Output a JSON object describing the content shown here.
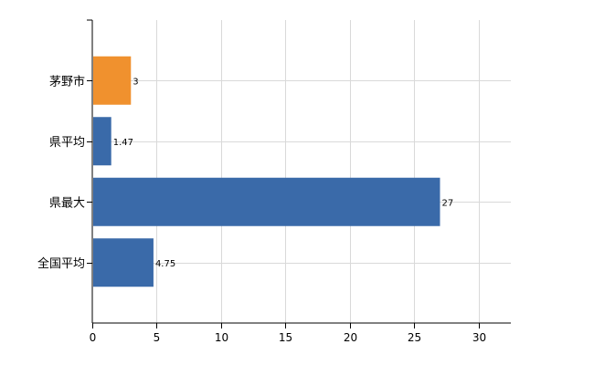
{
  "chart_data": {
    "type": "bar",
    "orientation": "horizontal",
    "categories": [
      "茅野市",
      "県平均",
      "県最大",
      "全国平均"
    ],
    "values": [
      3,
      1.47,
      27,
      4.75
    ],
    "value_labels": [
      "3",
      "1.47",
      "27",
      "4.75"
    ],
    "xlim": [
      0,
      32.5
    ],
    "xticks": [
      0,
      5,
      10,
      15,
      20,
      25,
      30
    ],
    "xtick_labels": [
      "0",
      "5",
      "10",
      "15",
      "20",
      "25",
      "30"
    ],
    "grid": true,
    "colors": [
      "#f0912e",
      "#3a6aa9",
      "#3a6aa9",
      "#3a6aa9"
    ],
    "title": "",
    "xlabel": "",
    "ylabel": ""
  }
}
